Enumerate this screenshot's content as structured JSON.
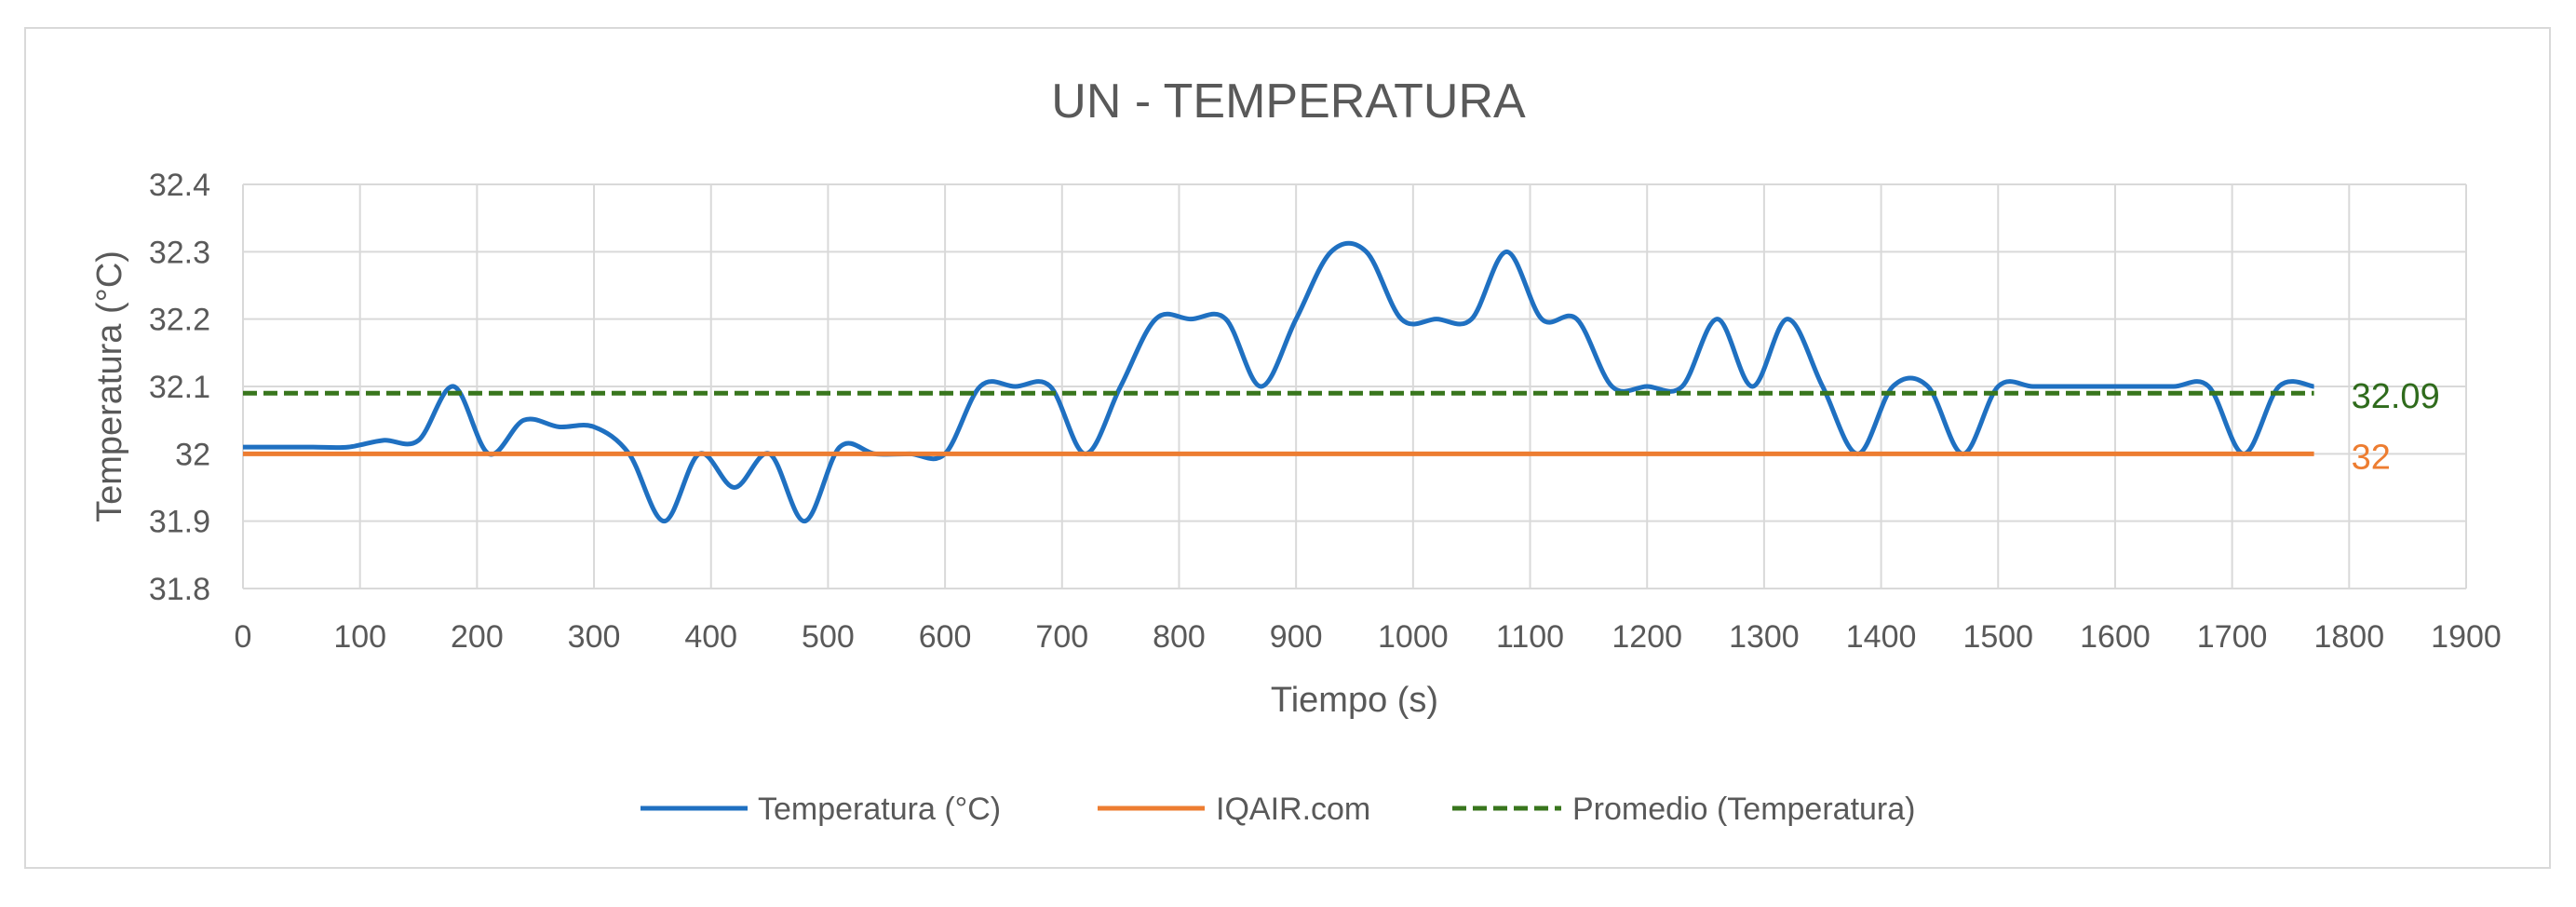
{
  "chart_data": {
    "type": "line",
    "title": "UN - TEMPERATURA",
    "xlabel": "Tiempo (s)",
    "ylabel": "Temperatura (°C)",
    "xlim": [
      0,
      1900
    ],
    "ylim": [
      31.8,
      32.4
    ],
    "xticks": [
      0,
      100,
      200,
      300,
      400,
      500,
      600,
      700,
      800,
      900,
      1000,
      1100,
      1200,
      1300,
      1400,
      1500,
      1600,
      1700,
      1800,
      1900
    ],
    "xtick_labels": [
      "0",
      "100",
      "200",
      "300",
      "400",
      "500",
      "600",
      "700",
      "800",
      "900",
      "1000",
      "1100",
      "1200",
      "1300",
      "1400",
      "1500",
      "1600",
      "1700",
      "1800",
      "1900"
    ],
    "yticks": [
      32.4,
      32.3,
      32.2,
      32.1,
      32,
      31.9,
      31.8
    ],
    "ytick_labels": [
      "32.4",
      "32.3",
      "32.2",
      "32.1",
      "32",
      "31.9",
      "31.8"
    ],
    "grid": true,
    "legend_position": "bottom",
    "series": [
      {
        "name": "Temperatura (°C)",
        "color": "#1f70c1",
        "line_style": "solid",
        "smooth": true,
        "x": [
          0,
          30,
          60,
          90,
          120,
          150,
          180,
          210,
          240,
          270,
          300,
          330,
          360,
          390,
          420,
          450,
          480,
          510,
          540,
          570,
          600,
          630,
          660,
          690,
          720,
          750,
          780,
          810,
          840,
          870,
          900,
          930,
          960,
          990,
          1020,
          1050,
          1080,
          1110,
          1140,
          1170,
          1200,
          1230,
          1260,
          1290,
          1320,
          1350,
          1380,
          1410,
          1440,
          1470,
          1500,
          1530,
          1560,
          1590,
          1620,
          1650,
          1680,
          1710,
          1740,
          1770
        ],
        "y": [
          32.01,
          32.01,
          32.01,
          32.01,
          32.02,
          32.02,
          32.1,
          32.0,
          32.05,
          32.04,
          32.04,
          32.0,
          31.9,
          32.0,
          31.95,
          32.0,
          31.9,
          32.01,
          32.0,
          32.0,
          32.0,
          32.1,
          32.1,
          32.1,
          32.0,
          32.1,
          32.2,
          32.2,
          32.2,
          32.1,
          32.2,
          32.3,
          32.3,
          32.2,
          32.2,
          32.2,
          32.3,
          32.2,
          32.2,
          32.1,
          32.1,
          32.1,
          32.2,
          32.1,
          32.2,
          32.1,
          32.0,
          32.1,
          32.1,
          32.0,
          32.1,
          32.1,
          32.1,
          32.1,
          32.1,
          32.1,
          32.1,
          32.0,
          32.1,
          32.1
        ]
      },
      {
        "name": "IQAIR.com",
        "color": "#ed7d31",
        "line_style": "solid",
        "smooth": false,
        "x": [
          0,
          1770
        ],
        "y": [
          32,
          32
        ],
        "data_label": {
          "text": "32",
          "color": "#ed7d31"
        }
      },
      {
        "name": "Promedio (Temperatura)",
        "color": "#38761d",
        "line_style": "dashed",
        "smooth": false,
        "x": [
          0,
          1770
        ],
        "y": [
          32.09,
          32.09
        ],
        "data_label": {
          "text": "32.09",
          "color": "#2f6b1c"
        }
      }
    ]
  }
}
